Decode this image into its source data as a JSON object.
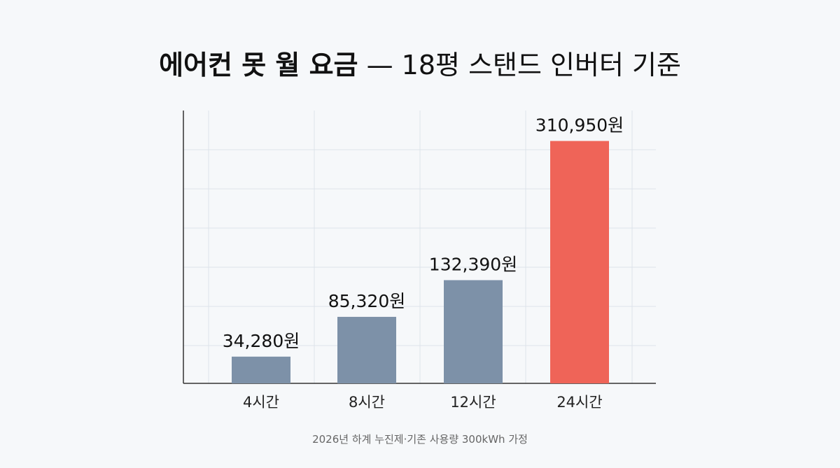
{
  "title": {
    "main": "에어컨 못 월 요금",
    "sub": " — 18평 스탠드 인버터 기준"
  },
  "footnote": "2026년 하계 누진제·기존 사용량 300kWh 가정",
  "colors": {
    "normal_bar": "#7d91a8",
    "highlight_bar": "#ef6458",
    "grid": "#dde3ea",
    "axis": "#333333"
  },
  "chart_data": {
    "type": "bar",
    "categories": [
      "4시간",
      "8시간",
      "12시간",
      "24시간"
    ],
    "values": [
      34280,
      85320,
      132390,
      310950
    ],
    "data_labels": [
      "34,280원",
      "85,320원",
      "132,390원",
      "310,950원"
    ],
    "highlight_index": 3,
    "ylim": [
      0,
      350000
    ],
    "grid": true
  }
}
